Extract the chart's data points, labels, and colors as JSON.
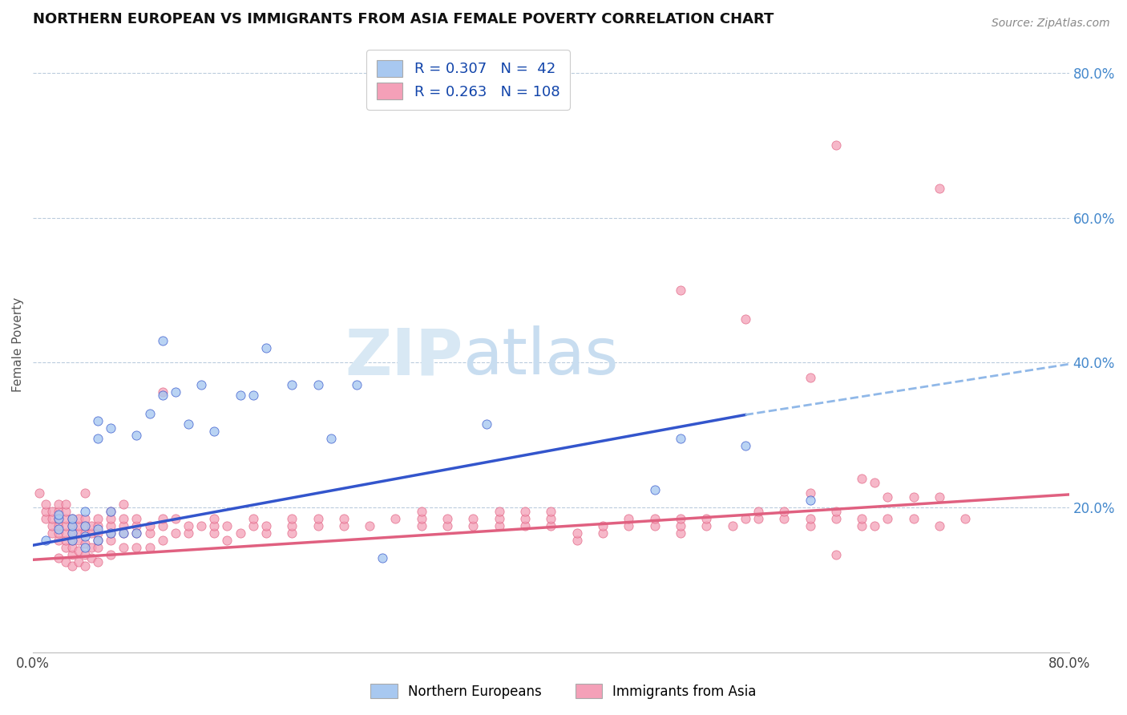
{
  "title": "NORTHERN EUROPEAN VS IMMIGRANTS FROM ASIA FEMALE POVERTY CORRELATION CHART",
  "source": "Source: ZipAtlas.com",
  "ylabel": "Female Poverty",
  "xlim": [
    0.0,
    0.8
  ],
  "ylim": [
    0.0,
    0.85
  ],
  "color_blue": "#A8C8F0",
  "color_pink": "#F4A0B8",
  "line_blue": "#3355CC",
  "line_pink": "#E06080",
  "line_dashed_color": "#90B8E8",
  "watermark_zip": "ZIP",
  "watermark_atlas": "atlas",
  "blue_line": [
    [
      0.0,
      0.148
    ],
    [
      0.55,
      0.328
    ]
  ],
  "blue_line_dashed": [
    [
      0.55,
      0.328
    ],
    [
      0.8,
      0.398
    ]
  ],
  "pink_line": [
    [
      0.0,
      0.128
    ],
    [
      0.8,
      0.218
    ]
  ],
  "blue_scatter": [
    [
      0.01,
      0.155
    ],
    [
      0.02,
      0.17
    ],
    [
      0.02,
      0.185
    ],
    [
      0.02,
      0.19
    ],
    [
      0.03,
      0.155
    ],
    [
      0.03,
      0.165
    ],
    [
      0.03,
      0.175
    ],
    [
      0.03,
      0.185
    ],
    [
      0.04,
      0.145
    ],
    [
      0.04,
      0.16
    ],
    [
      0.04,
      0.175
    ],
    [
      0.04,
      0.195
    ],
    [
      0.05,
      0.155
    ],
    [
      0.05,
      0.17
    ],
    [
      0.05,
      0.295
    ],
    [
      0.05,
      0.32
    ],
    [
      0.06,
      0.165
    ],
    [
      0.06,
      0.195
    ],
    [
      0.06,
      0.31
    ],
    [
      0.07,
      0.165
    ],
    [
      0.08,
      0.165
    ],
    [
      0.08,
      0.3
    ],
    [
      0.09,
      0.33
    ],
    [
      0.1,
      0.355
    ],
    [
      0.1,
      0.43
    ],
    [
      0.11,
      0.36
    ],
    [
      0.12,
      0.315
    ],
    [
      0.13,
      0.37
    ],
    [
      0.14,
      0.305
    ],
    [
      0.16,
      0.355
    ],
    [
      0.17,
      0.355
    ],
    [
      0.18,
      0.42
    ],
    [
      0.2,
      0.37
    ],
    [
      0.22,
      0.37
    ],
    [
      0.23,
      0.295
    ],
    [
      0.25,
      0.37
    ],
    [
      0.27,
      0.13
    ],
    [
      0.35,
      0.315
    ],
    [
      0.5,
      0.295
    ],
    [
      0.48,
      0.225
    ],
    [
      0.55,
      0.285
    ],
    [
      0.6,
      0.21
    ]
  ],
  "pink_scatter": [
    [
      0.005,
      0.22
    ],
    [
      0.01,
      0.185
    ],
    [
      0.01,
      0.195
    ],
    [
      0.01,
      0.205
    ],
    [
      0.015,
      0.165
    ],
    [
      0.015,
      0.175
    ],
    [
      0.015,
      0.185
    ],
    [
      0.015,
      0.195
    ],
    [
      0.02,
      0.13
    ],
    [
      0.02,
      0.155
    ],
    [
      0.02,
      0.165
    ],
    [
      0.02,
      0.175
    ],
    [
      0.02,
      0.185
    ],
    [
      0.02,
      0.195
    ],
    [
      0.02,
      0.205
    ],
    [
      0.025,
      0.125
    ],
    [
      0.025,
      0.145
    ],
    [
      0.025,
      0.155
    ],
    [
      0.025,
      0.165
    ],
    [
      0.025,
      0.175
    ],
    [
      0.025,
      0.185
    ],
    [
      0.025,
      0.195
    ],
    [
      0.025,
      0.205
    ],
    [
      0.03,
      0.12
    ],
    [
      0.03,
      0.135
    ],
    [
      0.03,
      0.145
    ],
    [
      0.03,
      0.155
    ],
    [
      0.03,
      0.165
    ],
    [
      0.03,
      0.175
    ],
    [
      0.03,
      0.185
    ],
    [
      0.035,
      0.125
    ],
    [
      0.035,
      0.14
    ],
    [
      0.035,
      0.155
    ],
    [
      0.035,
      0.165
    ],
    [
      0.035,
      0.175
    ],
    [
      0.035,
      0.185
    ],
    [
      0.04,
      0.12
    ],
    [
      0.04,
      0.135
    ],
    [
      0.04,
      0.15
    ],
    [
      0.04,
      0.165
    ],
    [
      0.04,
      0.175
    ],
    [
      0.04,
      0.185
    ],
    [
      0.04,
      0.22
    ],
    [
      0.045,
      0.13
    ],
    [
      0.045,
      0.145
    ],
    [
      0.045,
      0.165
    ],
    [
      0.045,
      0.175
    ],
    [
      0.05,
      0.125
    ],
    [
      0.05,
      0.145
    ],
    [
      0.05,
      0.155
    ],
    [
      0.05,
      0.165
    ],
    [
      0.05,
      0.175
    ],
    [
      0.05,
      0.185
    ],
    [
      0.06,
      0.135
    ],
    [
      0.06,
      0.155
    ],
    [
      0.06,
      0.165
    ],
    [
      0.06,
      0.175
    ],
    [
      0.06,
      0.185
    ],
    [
      0.06,
      0.195
    ],
    [
      0.07,
      0.145
    ],
    [
      0.07,
      0.165
    ],
    [
      0.07,
      0.175
    ],
    [
      0.07,
      0.185
    ],
    [
      0.07,
      0.205
    ],
    [
      0.08,
      0.145
    ],
    [
      0.08,
      0.165
    ],
    [
      0.08,
      0.175
    ],
    [
      0.08,
      0.185
    ],
    [
      0.09,
      0.145
    ],
    [
      0.09,
      0.165
    ],
    [
      0.09,
      0.175
    ],
    [
      0.1,
      0.155
    ],
    [
      0.1,
      0.175
    ],
    [
      0.1,
      0.185
    ],
    [
      0.1,
      0.36
    ],
    [
      0.11,
      0.165
    ],
    [
      0.11,
      0.185
    ],
    [
      0.12,
      0.165
    ],
    [
      0.12,
      0.175
    ],
    [
      0.13,
      0.175
    ],
    [
      0.14,
      0.165
    ],
    [
      0.14,
      0.175
    ],
    [
      0.14,
      0.185
    ],
    [
      0.15,
      0.155
    ],
    [
      0.15,
      0.175
    ],
    [
      0.16,
      0.165
    ],
    [
      0.17,
      0.175
    ],
    [
      0.17,
      0.185
    ],
    [
      0.18,
      0.165
    ],
    [
      0.18,
      0.175
    ],
    [
      0.2,
      0.165
    ],
    [
      0.2,
      0.175
    ],
    [
      0.2,
      0.185
    ],
    [
      0.22,
      0.175
    ],
    [
      0.22,
      0.185
    ],
    [
      0.24,
      0.175
    ],
    [
      0.24,
      0.185
    ],
    [
      0.26,
      0.175
    ],
    [
      0.28,
      0.185
    ],
    [
      0.3,
      0.175
    ],
    [
      0.3,
      0.185
    ],
    [
      0.3,
      0.195
    ],
    [
      0.32,
      0.175
    ],
    [
      0.32,
      0.185
    ],
    [
      0.34,
      0.175
    ],
    [
      0.34,
      0.185
    ],
    [
      0.36,
      0.175
    ],
    [
      0.36,
      0.185
    ],
    [
      0.36,
      0.195
    ],
    [
      0.38,
      0.175
    ],
    [
      0.38,
      0.185
    ],
    [
      0.38,
      0.195
    ],
    [
      0.4,
      0.175
    ],
    [
      0.4,
      0.185
    ],
    [
      0.4,
      0.195
    ],
    [
      0.42,
      0.155
    ],
    [
      0.42,
      0.165
    ],
    [
      0.44,
      0.165
    ],
    [
      0.44,
      0.175
    ],
    [
      0.46,
      0.175
    ],
    [
      0.46,
      0.185
    ],
    [
      0.48,
      0.175
    ],
    [
      0.48,
      0.185
    ],
    [
      0.5,
      0.165
    ],
    [
      0.5,
      0.175
    ],
    [
      0.5,
      0.185
    ],
    [
      0.52,
      0.175
    ],
    [
      0.52,
      0.185
    ],
    [
      0.54,
      0.175
    ],
    [
      0.55,
      0.185
    ],
    [
      0.56,
      0.185
    ],
    [
      0.56,
      0.195
    ],
    [
      0.58,
      0.185
    ],
    [
      0.58,
      0.195
    ],
    [
      0.6,
      0.175
    ],
    [
      0.6,
      0.185
    ],
    [
      0.6,
      0.22
    ],
    [
      0.62,
      0.135
    ],
    [
      0.62,
      0.185
    ],
    [
      0.62,
      0.195
    ],
    [
      0.64,
      0.175
    ],
    [
      0.64,
      0.185
    ],
    [
      0.65,
      0.175
    ],
    [
      0.65,
      0.235
    ],
    [
      0.66,
      0.185
    ],
    [
      0.66,
      0.215
    ],
    [
      0.68,
      0.185
    ],
    [
      0.68,
      0.215
    ],
    [
      0.7,
      0.175
    ],
    [
      0.7,
      0.215
    ],
    [
      0.72,
      0.185
    ],
    [
      0.5,
      0.5
    ],
    [
      0.62,
      0.7
    ],
    [
      0.7,
      0.64
    ],
    [
      0.64,
      0.24
    ],
    [
      0.55,
      0.46
    ],
    [
      0.6,
      0.38
    ]
  ]
}
